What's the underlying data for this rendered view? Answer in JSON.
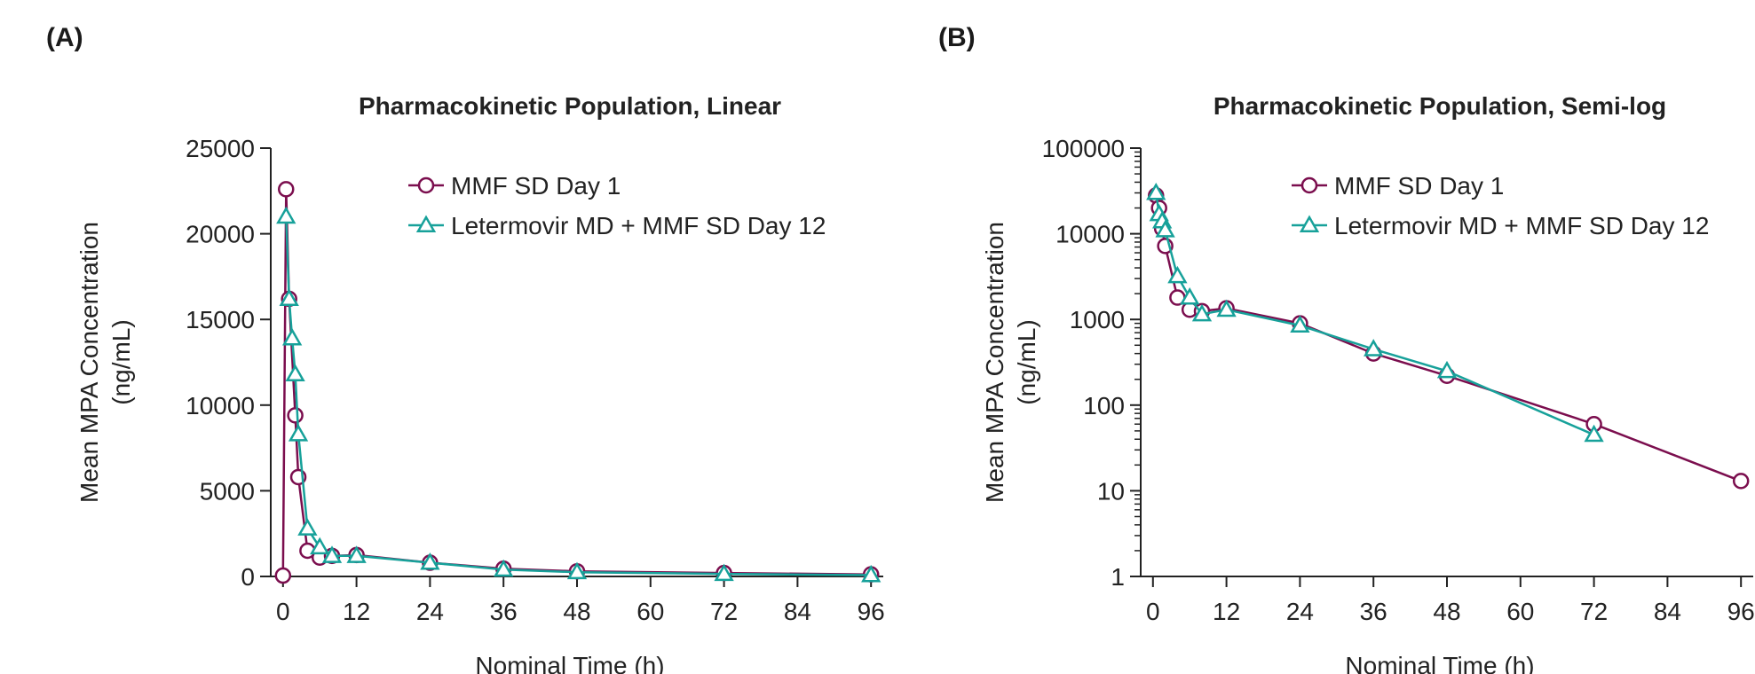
{
  "colors": {
    "series1": "#7b0e4e",
    "series2": "#17a19a",
    "axis": "#222222"
  },
  "panels": [
    {
      "letter": "(A)",
      "chart_data": {
        "type": "line",
        "title": "Pharmacokinetic Population, Linear",
        "xlabel": "Nominal Time (h)",
        "ylabel_line1": "Mean MPA Concentration",
        "ylabel_line2": "(ng/mL)",
        "yscale": "linear",
        "xlim": [
          -2,
          98
        ],
        "ylim": [
          0,
          25000
        ],
        "xticks": [
          "0",
          "12",
          "24",
          "36",
          "48",
          "60",
          "72",
          "84",
          "96"
        ],
        "yticks": [
          "0",
          "5000",
          "10000",
          "15000",
          "20000",
          "25000"
        ],
        "legend_position": "top-right",
        "series": [
          {
            "name": "MMF SD Day 1",
            "marker": "circle",
            "x": [
              0,
              0.5,
              1,
              2,
              2.5,
              4,
              6,
              8,
              12,
              24,
              36,
              48,
              72,
              96
            ],
            "y": [
              50,
              22600,
              16200,
              9400,
              5800,
              1500,
              1100,
              1200,
              1250,
              800,
              450,
              300,
              200,
              120
            ]
          },
          {
            "name": "Letermovir MD + MMF SD Day 12",
            "marker": "triangle",
            "x": [
              0.5,
              1,
              1.5,
              2,
              2.5,
              4,
              6,
              8,
              12,
              24,
              36,
              48,
              72,
              96
            ],
            "y": [
              21000,
              16200,
              13900,
              11800,
              8300,
              2800,
              1700,
              1200,
              1200,
              800,
              400,
              250,
              150,
              80
            ]
          }
        ]
      }
    },
    {
      "letter": "(B)",
      "chart_data": {
        "type": "line",
        "title": "Pharmacokinetic Population, Semi-log",
        "xlabel": "Nominal Time (h)",
        "ylabel_line1": "Mean MPA Concentration",
        "ylabel_line2": "(ng/mL)",
        "yscale": "log",
        "xlim": [
          -2,
          98
        ],
        "ylim": [
          1,
          100000
        ],
        "xticks": [
          "0",
          "12",
          "24",
          "36",
          "48",
          "60",
          "72",
          "84",
          "96"
        ],
        "yticks": [
          "1",
          "10",
          "100",
          "1000",
          "10000",
          "100000"
        ],
        "legend_position": "top-right",
        "series": [
          {
            "name": "MMF SD Day 1",
            "marker": "circle",
            "x": [
              0.5,
              1,
              1.5,
              2,
              4,
              6,
              8,
              12,
              24,
              36,
              48,
              72,
              96
            ],
            "y": [
              28000,
              20000,
              11500,
              7200,
              1800,
              1300,
              1250,
              1350,
              900,
              400,
              220,
              60,
              13
            ]
          },
          {
            "name": "Letermovir MD + MMF SD Day 12",
            "marker": "triangle",
            "x": [
              0.5,
              1,
              1.5,
              2,
              4,
              6,
              8,
              12,
              24,
              36,
              48,
              72
            ],
            "y": [
              30000,
              17000,
              14000,
              11000,
              3200,
              1800,
              1150,
              1300,
              850,
              450,
              250,
              45
            ]
          }
        ]
      }
    }
  ]
}
